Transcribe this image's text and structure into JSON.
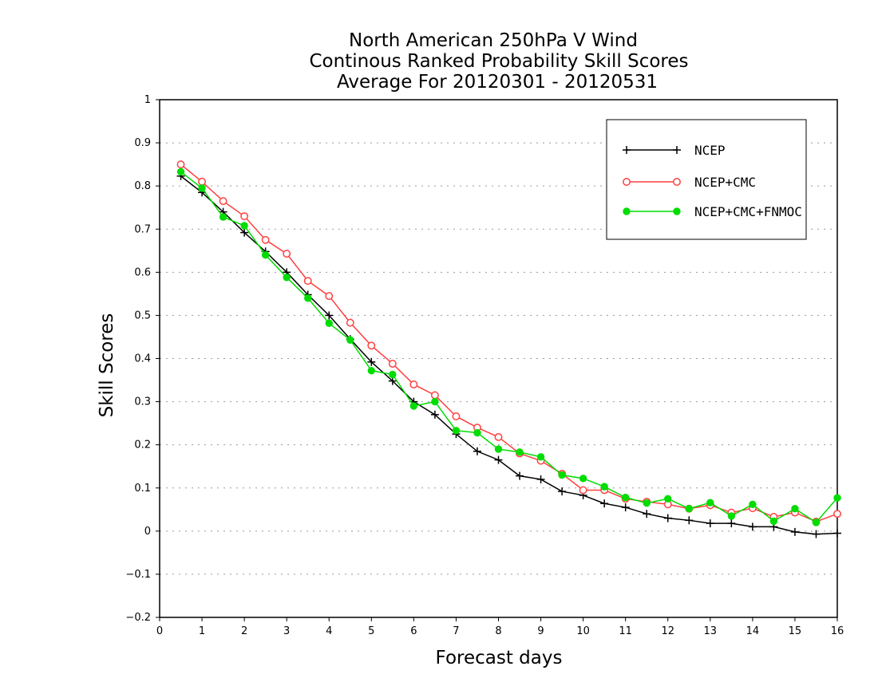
{
  "chart_data": {
    "type": "line",
    "title": "North American 250hPa V Wind",
    "subtitle_lines": [
      "Continous Ranked Probability Skill Scores",
      "Average For 20120301 - 20120531"
    ],
    "xlabel": "Forecast days",
    "ylabel": "Skill Scores",
    "xlim": [
      0,
      16
    ],
    "ylim": [
      -0.2,
      1
    ],
    "x_ticks": [
      "0",
      "1",
      "2",
      "3",
      "4",
      "5",
      "6",
      "7",
      "8",
      "9",
      "10",
      "11",
      "12",
      "13",
      "14",
      "15",
      "16"
    ],
    "y_ticks": [
      "−0.2",
      "−0.1",
      "0",
      "0.1",
      "0.2",
      "0.3",
      "0.4",
      "0.5",
      "0.6",
      "0.7",
      "0.8",
      "0.9",
      "1"
    ],
    "grid": "horizontal dotted",
    "legend_position": "top-right",
    "x": [
      0.5,
      1,
      1.5,
      2,
      2.5,
      3,
      3.5,
      4,
      4.5,
      5,
      5.5,
      6,
      6.5,
      7,
      7.5,
      8,
      8.5,
      9,
      9.5,
      10,
      10.5,
      11,
      11.5,
      12,
      12.5,
      13,
      13.5,
      14,
      14.5,
      15,
      15.5,
      16
    ],
    "series": [
      {
        "name": "NCEP",
        "color": "#000000",
        "marker": "plus",
        "values": [
          0.823,
          0.785,
          0.74,
          0.692,
          0.648,
          0.6,
          0.548,
          0.5,
          0.445,
          0.392,
          0.348,
          0.3,
          0.27,
          0.225,
          0.185,
          0.165,
          0.128,
          0.12,
          0.092,
          0.083,
          0.064,
          0.055,
          0.04,
          0.03,
          0.025,
          0.018,
          0.018,
          0.01,
          0.01,
          -0.002,
          -0.007,
          -0.005
        ]
      },
      {
        "name": "NCEP+CMC",
        "color": "#ff4040",
        "marker": "open-circle",
        "values": [
          0.85,
          0.81,
          0.765,
          0.73,
          0.675,
          0.643,
          0.58,
          0.545,
          0.483,
          0.43,
          0.388,
          0.34,
          0.315,
          0.266,
          0.24,
          0.218,
          0.18,
          0.163,
          0.133,
          0.095,
          0.095,
          0.075,
          0.068,
          0.062,
          0.052,
          0.06,
          0.043,
          0.053,
          0.033,
          0.043,
          0.022,
          0.04
        ]
      },
      {
        "name": "NCEP+CMC+FNMOC",
        "color": "#00dd00",
        "marker": "filled-circle",
        "values": [
          0.833,
          0.795,
          0.728,
          0.708,
          0.64,
          0.588,
          0.54,
          0.482,
          0.443,
          0.372,
          0.363,
          0.29,
          0.3,
          0.233,
          0.228,
          0.19,
          0.183,
          0.172,
          0.13,
          0.122,
          0.103,
          0.078,
          0.065,
          0.075,
          0.052,
          0.066,
          0.035,
          0.062,
          0.023,
          0.052,
          0.02,
          0.077
        ]
      }
    ]
  }
}
